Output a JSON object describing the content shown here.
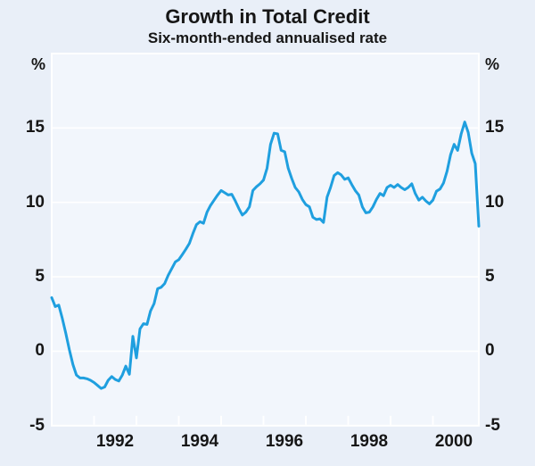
{
  "chart_data": {
    "type": "line",
    "title": "Growth in Total Credit",
    "subtitle": "Six-month-ended annualised rate",
    "unit_left": "%",
    "unit_right": "%",
    "ylim": [
      -5,
      20
    ],
    "y_gridlines": [
      0,
      5,
      10,
      15
    ],
    "y_tick_labels_left": [
      "15",
      "10",
      "5",
      "0",
      "-5"
    ],
    "y_tick_labels_right": [
      "15",
      "10",
      "5",
      "0",
      "-5"
    ],
    "y_tick_values": [
      15,
      10,
      5,
      0,
      -5
    ],
    "x_tick_labels": [
      "1992",
      "1994",
      "1996",
      "1998",
      "2000"
    ],
    "x_tick_label_month_index": [
      18,
      42,
      66,
      90,
      114
    ],
    "x_minor_tick_month_index": [
      12,
      24,
      36,
      48,
      60,
      72,
      84,
      96,
      108
    ],
    "x_start": "Jul 1990",
    "x_end": "Aug 2000",
    "frequency": "monthly",
    "grid": true,
    "legend": "none",
    "series": [
      {
        "name": "Total credit growth (six-month-ended annualised rate, %)",
        "color": "#1f9fdf",
        "values": [
          3.6,
          3.0,
          3.1,
          2.2,
          1.2,
          0.1,
          -0.9,
          -1.6,
          -1.8,
          -1.8,
          -1.85,
          -1.95,
          -2.1,
          -2.3,
          -2.5,
          -2.4,
          -1.95,
          -1.7,
          -1.9,
          -2.0,
          -1.6,
          -1.0,
          -1.55,
          1.0,
          -0.45,
          1.5,
          1.85,
          1.8,
          2.7,
          3.2,
          4.2,
          4.3,
          4.55,
          5.1,
          5.55,
          6.0,
          6.15,
          6.5,
          6.85,
          7.25,
          7.9,
          8.5,
          8.7,
          8.6,
          9.35,
          9.8,
          10.15,
          10.5,
          10.8,
          10.65,
          10.5,
          10.55,
          10.1,
          9.6,
          9.15,
          9.35,
          9.7,
          10.8,
          11.05,
          11.25,
          11.5,
          12.3,
          13.9,
          14.65,
          14.6,
          13.5,
          13.4,
          12.3,
          11.6,
          11.0,
          10.7,
          10.2,
          9.85,
          9.7,
          9.0,
          8.85,
          8.9,
          8.65,
          10.35,
          11.0,
          11.8,
          12.0,
          11.85,
          11.55,
          11.65,
          11.2,
          10.8,
          10.5,
          9.7,
          9.3,
          9.35,
          9.7,
          10.2,
          10.6,
          10.45,
          11.0,
          11.15,
          11.0,
          11.2,
          11.0,
          10.85,
          11.0,
          11.25,
          10.6,
          10.15,
          10.35,
          10.1,
          9.9,
          10.15,
          10.75,
          10.9,
          11.3,
          12.1,
          13.2,
          13.9,
          13.5,
          14.6,
          15.4,
          14.7,
          13.3,
          12.6,
          8.4
        ]
      }
    ]
  },
  "colors": {
    "page_background": "#e9eff8",
    "plot_background": "#f2f6fc",
    "grid_and_frame": "#ffffff",
    "line": "#1f9fdf",
    "text": "#161616"
  }
}
